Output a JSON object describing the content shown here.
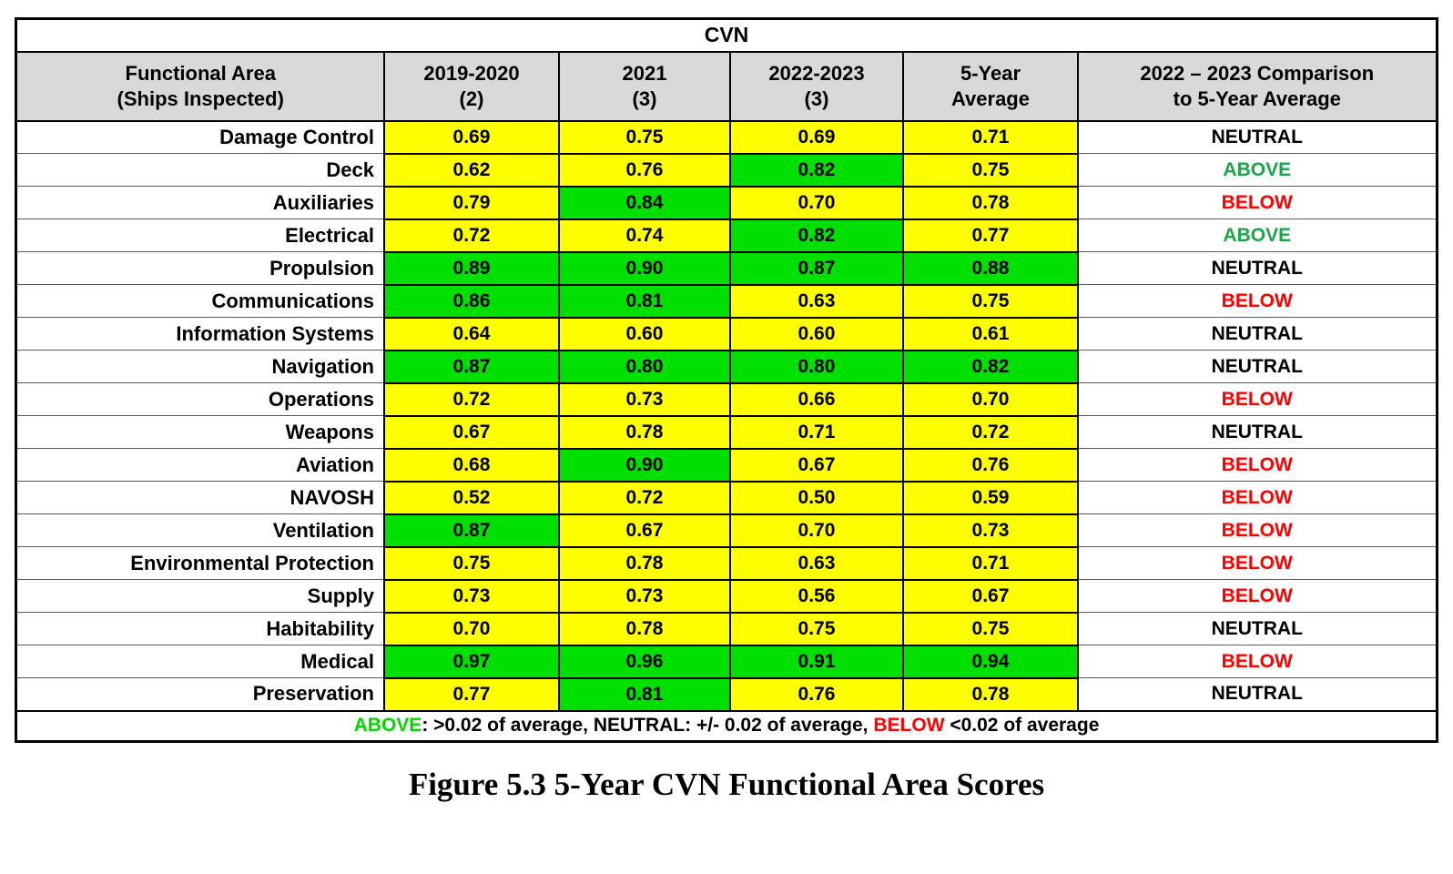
{
  "table": {
    "title": "CVN",
    "columns": [
      {
        "line1": "Functional Area",
        "line2": "(Ships Inspected)"
      },
      {
        "line1": "2019-2020",
        "line2": "(2)"
      },
      {
        "line1": "2021",
        "line2": "(3)"
      },
      {
        "line1": "2022-2023",
        "line2": "(3)"
      },
      {
        "line1": "5-Year",
        "line2": "Average"
      },
      {
        "line1": "2022 – 2023 Comparison",
        "line2": "to 5-Year Average"
      }
    ],
    "rows": [
      {
        "area": "Damage Control",
        "values": [
          "0.69",
          "0.75",
          "0.69",
          "0.71"
        ],
        "fills": [
          "yellow",
          "yellow",
          "yellow",
          "yellow"
        ],
        "comparison": "NEUTRAL",
        "status": "neutral"
      },
      {
        "area": "Deck",
        "values": [
          "0.62",
          "0.76",
          "0.82",
          "0.75"
        ],
        "fills": [
          "yellow",
          "yellow",
          "green",
          "yellow"
        ],
        "comparison": "ABOVE",
        "status": "above"
      },
      {
        "area": "Auxiliaries",
        "values": [
          "0.79",
          "0.84",
          "0.70",
          "0.78"
        ],
        "fills": [
          "yellow",
          "green",
          "yellow",
          "yellow"
        ],
        "comparison": "BELOW",
        "status": "below"
      },
      {
        "area": "Electrical",
        "values": [
          "0.72",
          "0.74",
          "0.82",
          "0.77"
        ],
        "fills": [
          "yellow",
          "yellow",
          "green",
          "yellow"
        ],
        "comparison": "ABOVE",
        "status": "above"
      },
      {
        "area": "Propulsion",
        "values": [
          "0.89",
          "0.90",
          "0.87",
          "0.88"
        ],
        "fills": [
          "green",
          "green",
          "green",
          "green"
        ],
        "comparison": "NEUTRAL",
        "status": "neutral"
      },
      {
        "area": "Communications",
        "values": [
          "0.86",
          "0.81",
          "0.63",
          "0.75"
        ],
        "fills": [
          "green",
          "green",
          "yellow",
          "yellow"
        ],
        "comparison": "BELOW",
        "status": "below"
      },
      {
        "area": "Information Systems",
        "values": [
          "0.64",
          "0.60",
          "0.60",
          "0.61"
        ],
        "fills": [
          "yellow",
          "yellow",
          "yellow",
          "yellow"
        ],
        "comparison": "NEUTRAL",
        "status": "neutral"
      },
      {
        "area": "Navigation",
        "values": [
          "0.87",
          "0.80",
          "0.80",
          "0.82"
        ],
        "fills": [
          "green",
          "green",
          "green",
          "green"
        ],
        "comparison": "NEUTRAL",
        "status": "neutral"
      },
      {
        "area": "Operations",
        "values": [
          "0.72",
          "0.73",
          "0.66",
          "0.70"
        ],
        "fills": [
          "yellow",
          "yellow",
          "yellow",
          "yellow"
        ],
        "comparison": "BELOW",
        "status": "below"
      },
      {
        "area": "Weapons",
        "values": [
          "0.67",
          "0.78",
          "0.71",
          "0.72"
        ],
        "fills": [
          "yellow",
          "yellow",
          "yellow",
          "yellow"
        ],
        "comparison": "NEUTRAL",
        "status": "neutral"
      },
      {
        "area": "Aviation",
        "values": [
          "0.68",
          "0.90",
          "0.67",
          "0.76"
        ],
        "fills": [
          "yellow",
          "green",
          "yellow",
          "yellow"
        ],
        "comparison": "BELOW",
        "status": "below"
      },
      {
        "area": "NAVOSH",
        "values": [
          "0.52",
          "0.72",
          "0.50",
          "0.59"
        ],
        "fills": [
          "yellow",
          "yellow",
          "yellow",
          "yellow"
        ],
        "comparison": "BELOW",
        "status": "below"
      },
      {
        "area": "Ventilation",
        "values": [
          "0.87",
          "0.67",
          "0.70",
          "0.73"
        ],
        "fills": [
          "green",
          "yellow",
          "yellow",
          "yellow"
        ],
        "comparison": "BELOW",
        "status": "below"
      },
      {
        "area": "Environmental Protection",
        "values": [
          "0.75",
          "0.78",
          "0.63",
          "0.71"
        ],
        "fills": [
          "yellow",
          "yellow",
          "yellow",
          "yellow"
        ],
        "comparison": "BELOW",
        "status": "below"
      },
      {
        "area": "Supply",
        "values": [
          "0.73",
          "0.73",
          "0.56",
          "0.67"
        ],
        "fills": [
          "yellow",
          "yellow",
          "yellow",
          "yellow"
        ],
        "comparison": "BELOW",
        "status": "below"
      },
      {
        "area": "Habitability",
        "values": [
          "0.70",
          "0.78",
          "0.75",
          "0.75"
        ],
        "fills": [
          "yellow",
          "yellow",
          "yellow",
          "yellow"
        ],
        "comparison": "NEUTRAL",
        "status": "neutral"
      },
      {
        "area": "Medical",
        "values": [
          "0.97",
          "0.96",
          "0.91",
          "0.94"
        ],
        "fills": [
          "green",
          "green",
          "green",
          "green"
        ],
        "comparison": "BELOW",
        "status": "below"
      },
      {
        "area": "Preservation",
        "values": [
          "0.77",
          "0.81",
          "0.76",
          "0.78"
        ],
        "fills": [
          "yellow",
          "green",
          "yellow",
          "yellow"
        ],
        "comparison": "NEUTRAL",
        "status": "neutral"
      }
    ]
  },
  "legend": {
    "segments": [
      {
        "text": "ABOVE",
        "style": "above"
      },
      {
        "text": ":  >0.02 of average, ",
        "style": "plain"
      },
      {
        "text": "NEUTRAL:  +/- 0.02 of average, ",
        "style": "plain"
      },
      {
        "text": "BELOW",
        "style": "below"
      },
      {
        "text": " <0.02 of average",
        "style": "plain"
      }
    ]
  },
  "caption": "Figure 5.3 5-Year CVN Functional Area Scores",
  "colors": {
    "cell_yellow": "#FFFF00",
    "cell_green": "#00E000",
    "header_bg": "#D9D9D9",
    "comparison_above_text": "#1AA648",
    "comparison_below_text": "#FF0000",
    "comparison_neutral_text": "#000000",
    "legend_above_text": "#00D800",
    "legend_below_text": "#FF0000"
  }
}
